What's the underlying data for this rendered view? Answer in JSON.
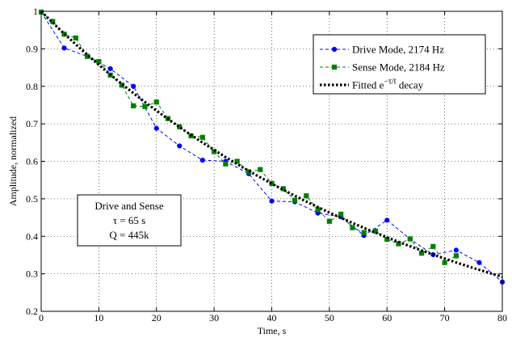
{
  "chart_data": {
    "type": "line",
    "xlabel": "Time, s",
    "ylabel": "Amplitude, normalized",
    "xlim": [
      0,
      80
    ],
    "ylim": [
      0.2,
      1.0
    ],
    "xticks": [
      0,
      10,
      20,
      30,
      40,
      50,
      60,
      70,
      80
    ],
    "yticks": [
      0.2,
      0.3,
      0.4,
      0.5,
      0.6,
      0.7,
      0.8,
      0.9,
      1.0
    ],
    "ytick_labels": [
      "0.2",
      "0.3",
      "0.4",
      "0.5",
      "0.6",
      "0.7",
      "0.8",
      "0.9",
      "1"
    ],
    "grid": true,
    "legend_position": "top-right",
    "series": [
      {
        "name": "Drive Mode, 2174 Hz",
        "color": "#0000ff",
        "marker": "circle",
        "line": "dashed",
        "x": [
          0,
          4,
          8,
          12,
          16,
          20,
          24,
          28,
          32,
          36,
          40,
          44,
          48,
          52,
          56,
          60,
          64,
          68,
          72,
          76,
          80
        ],
        "y": [
          0.998,
          0.902,
          0.88,
          0.847,
          0.8,
          0.688,
          0.641,
          0.603,
          0.6,
          0.567,
          0.494,
          0.492,
          0.462,
          0.452,
          0.402,
          0.443,
          0.393,
          0.351,
          0.363,
          0.33,
          0.278
        ]
      },
      {
        "name": "Sense Mode, 2184 Hz",
        "color": "#008000",
        "marker": "square",
        "line": "dashed",
        "x": [
          0,
          2,
          4,
          6,
          8,
          10,
          12,
          14,
          16,
          18,
          20,
          22,
          24,
          26,
          28,
          30,
          32,
          34,
          36,
          38,
          40,
          42,
          44,
          46,
          48,
          50,
          52,
          54,
          56,
          58,
          60,
          62,
          64,
          66,
          68,
          70,
          72
        ],
        "y": [
          0.998,
          0.973,
          0.939,
          0.929,
          0.88,
          0.866,
          0.83,
          0.803,
          0.748,
          0.746,
          0.758,
          0.714,
          0.692,
          0.668,
          0.664,
          0.626,
          0.593,
          0.6,
          0.572,
          0.578,
          0.541,
          0.527,
          0.496,
          0.508,
          0.471,
          0.44,
          0.459,
          0.423,
          0.41,
          0.414,
          0.392,
          0.38,
          0.393,
          0.355,
          0.373,
          0.33,
          0.348
        ]
      },
      {
        "name": "Fitted e^{-τ/t} decay",
        "color": "#000000",
        "line": "dotted-thick",
        "fit": {
          "tau": 65,
          "start": 1.0
        }
      }
    ],
    "legend": [
      {
        "prefix": "Drive Mode, 2174 Hz"
      },
      {
        "prefix": "Sense Mode, 2184 Hz"
      },
      {
        "prefix": "Fitted e",
        "superscript": "−τ/t",
        "suffix": " decay"
      }
    ],
    "annotation": {
      "lines": [
        "Drive and Sense",
        "τ = 65 s",
        "Q = 445k"
      ]
    }
  }
}
